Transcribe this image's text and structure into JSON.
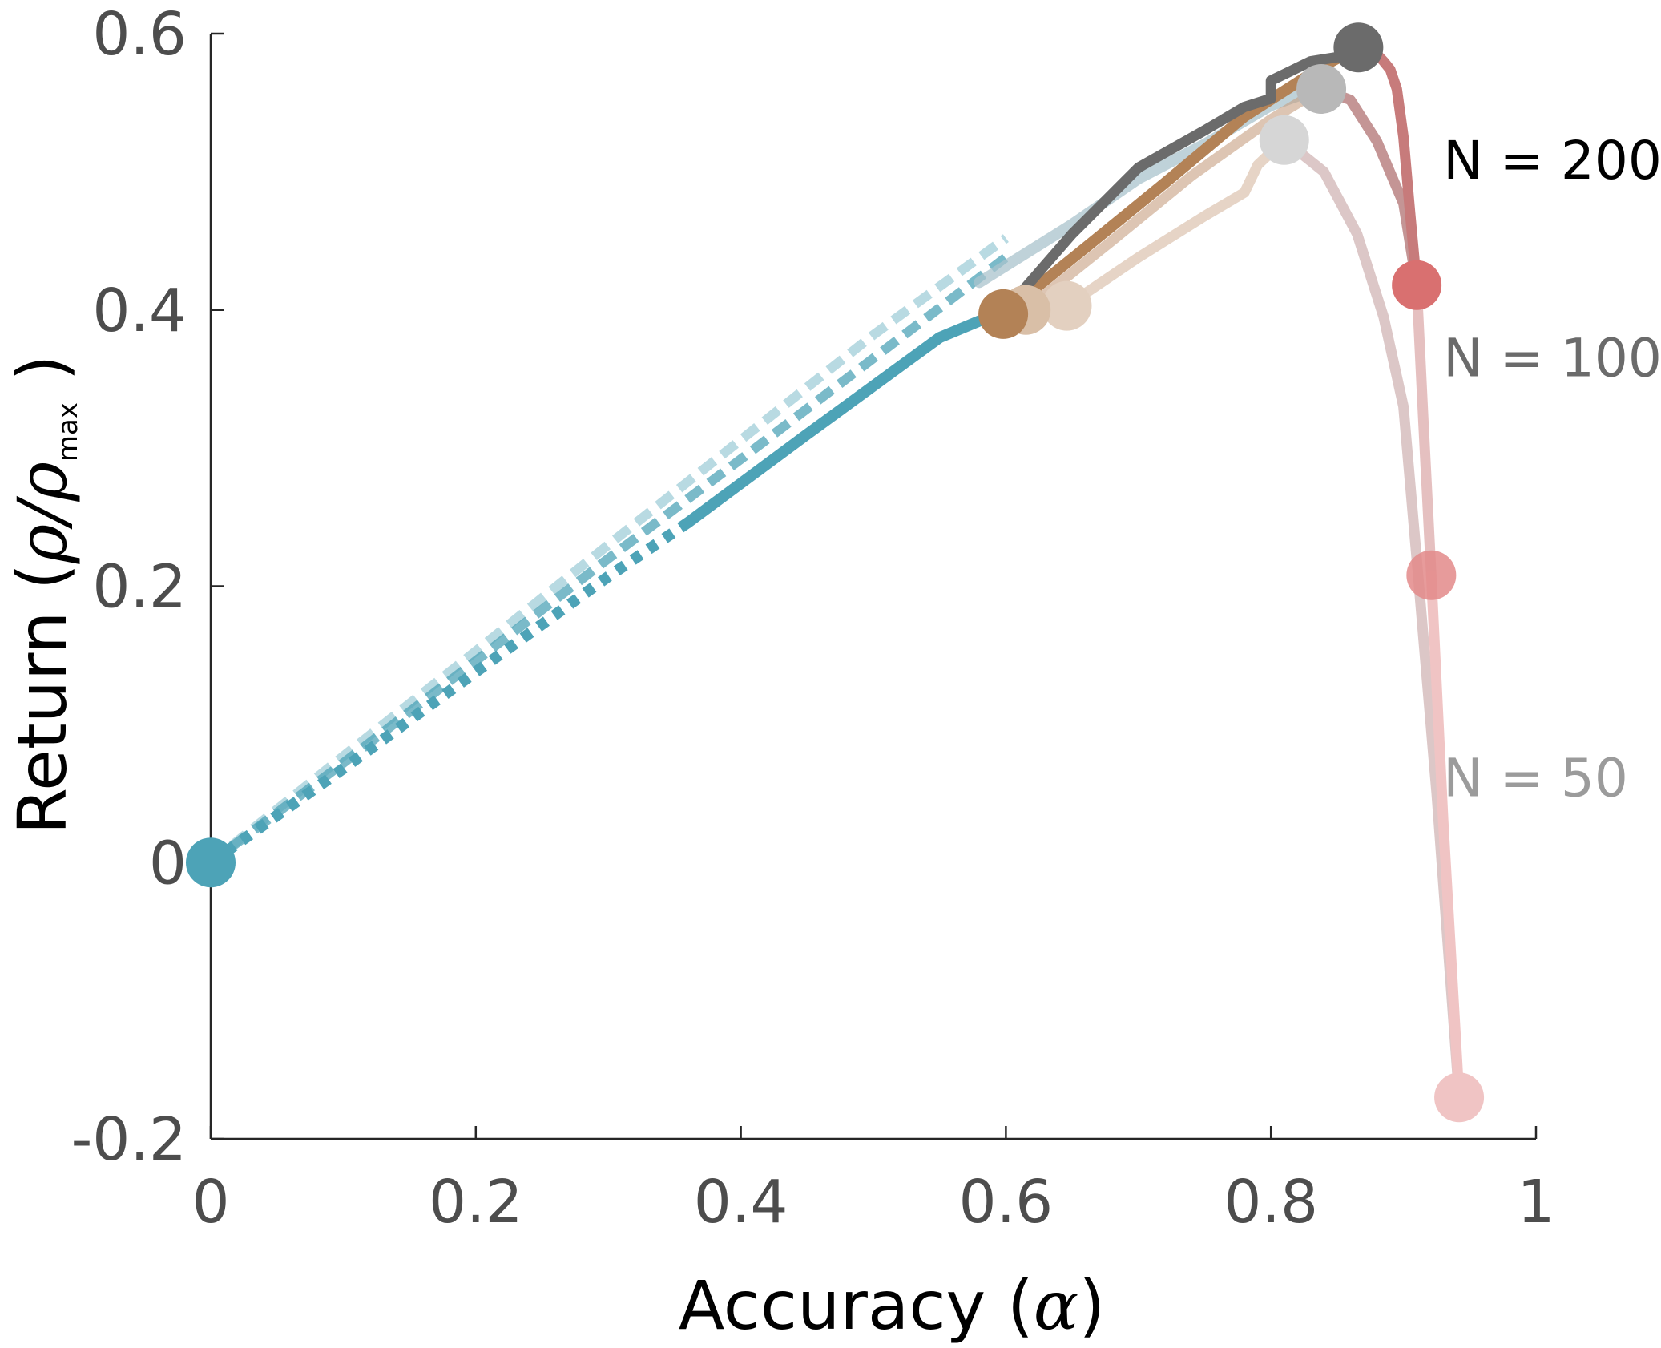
{
  "chart_data": {
    "type": "line",
    "xlabel": {
      "text": "Accuracy (",
      "symbol": "α",
      "close": ")"
    },
    "ylabel": {
      "text": "Return (",
      "symbol": "ρ/ρ",
      "subscript": "max",
      "close": " )"
    },
    "xlim": [
      0,
      1
    ],
    "ylim": [
      -0.2,
      0.6
    ],
    "xticks": [
      "0",
      "0.2",
      "0.4",
      "0.6",
      "0.8",
      "1"
    ],
    "yticks": [
      "-0.2",
      "0",
      "0.2",
      "0.4",
      "0.6"
    ],
    "grid": false,
    "legend": "none",
    "annotations": [
      {
        "text": "N = 200",
        "color": "#000000",
        "x": 0.93,
        "y": 0.495
      },
      {
        "text": "N = 100",
        "color": "#6b6b6b",
        "x": 0.93,
        "y": 0.352
      },
      {
        "text": "N = 50",
        "color": "#9b9b9b",
        "x": 0.93,
        "y": 0.048
      }
    ],
    "series": [
      {
        "color": "#4da3b7",
        "opacity": 0.4,
        "style": "dashed",
        "width": 12,
        "x": [
          0,
          0.1,
          0.2,
          0.3,
          0.4,
          0.5,
          0.6
        ],
        "y": [
          0,
          0.077,
          0.153,
          0.23,
          0.306,
          0.382,
          0.452
        ]
      },
      {
        "color": "#4da3b7",
        "opacity": 0.75,
        "style": "dashed",
        "width": 12,
        "x": [
          0,
          0.1,
          0.2,
          0.3,
          0.4,
          0.5,
          0.6
        ],
        "y": [
          0,
          0.072,
          0.146,
          0.22,
          0.292,
          0.365,
          0.438
        ]
      },
      {
        "color": "#4da3b7",
        "opacity": 1,
        "style": "dotted",
        "width": 14,
        "x": [
          0,
          0.1,
          0.2,
          0.3,
          0.36
        ],
        "y": [
          0,
          0.068,
          0.138,
          0.207,
          0.246
        ]
      },
      {
        "color": "#4da3b7",
        "opacity": 1,
        "style": "solid",
        "width": 14,
        "x": [
          0.36,
          0.45,
          0.55,
          0.6
        ],
        "y": [
          0.246,
          0.31,
          0.38,
          0.4
        ]
      },
      {
        "color": "#a9c3cc",
        "opacity": 0.75,
        "style": "solid",
        "width": 14,
        "x": [
          0.58,
          0.65,
          0.7,
          0.75,
          0.8,
          0.85
        ],
        "y": [
          0.42,
          0.462,
          0.495,
          0.52,
          0.548,
          0.565
        ]
      },
      {
        "color": "#c79f80",
        "opacity": 0.45,
        "style": "solid",
        "width": 13,
        "x": [
          0.646,
          0.7,
          0.75,
          0.78,
          0.79,
          0.81
        ],
        "y": [
          0.403,
          0.438,
          0.468,
          0.485,
          0.505,
          0.523
        ]
      },
      {
        "color": "#c79f80",
        "opacity": 0.6,
        "style": "solid",
        "width": 13,
        "x": [
          0.615,
          0.68,
          0.74,
          0.8,
          0.838
        ],
        "y": [
          0.4,
          0.45,
          0.497,
          0.538,
          0.56
        ]
      },
      {
        "color": "#b38256",
        "opacity": 1,
        "style": "solid",
        "width": 14,
        "x": [
          0.598,
          0.66,
          0.72,
          0.78,
          0.84,
          0.866
        ],
        "y": [
          0.397,
          0.445,
          0.492,
          0.54,
          0.577,
          0.59
        ]
      },
      {
        "color": "#6b6b6b",
        "opacity": 1,
        "style": "solid",
        "width": 13,
        "x": [
          0.6,
          0.65,
          0.7,
          0.75,
          0.78,
          0.8,
          0.8,
          0.83,
          0.85,
          0.866
        ],
        "y": [
          0.4,
          0.455,
          0.503,
          0.53,
          0.547,
          0.553,
          0.566,
          0.58,
          0.583,
          0.59
        ]
      },
      {
        "color": "#dcc7c7",
        "opacity": 1,
        "style": "solid",
        "width": 13,
        "x": [
          0.81,
          0.84,
          0.865,
          0.885,
          0.9,
          0.91,
          0.925,
          0.942
        ],
        "y": [
          0.523,
          0.5,
          0.455,
          0.395,
          0.33,
          0.22,
          0.05,
          -0.17
        ]
      },
      {
        "color": "#c49595",
        "opacity": 1,
        "style": "solid",
        "width": 13,
        "x": [
          0.838,
          0.86,
          0.88,
          0.9,
          0.91
        ],
        "y": [
          0.56,
          0.552,
          0.522,
          0.477,
          0.418
        ]
      },
      {
        "color": "#cf8c8c",
        "opacity": 0.55,
        "style": "solid",
        "width": 13,
        "x": [
          0.91,
          0.915,
          0.921
        ],
        "y": [
          0.418,
          0.32,
          0.208
        ]
      },
      {
        "color": "#c77b7b",
        "opacity": 1,
        "style": "solid",
        "width": 13,
        "x": [
          0.866,
          0.875,
          0.88,
          0.885,
          0.89,
          0.895,
          0.9,
          0.905,
          0.91
        ],
        "y": [
          0.59,
          0.589,
          0.585,
          0.58,
          0.574,
          0.56,
          0.525,
          0.47,
          0.418
        ]
      },
      {
        "color": "#f0c4c4",
        "opacity": 1,
        "style": "solid",
        "width": 13,
        "x": [
          0.921,
          0.93,
          0.942
        ],
        "y": [
          0.208,
          0.03,
          -0.17
        ]
      }
    ],
    "markers": [
      {
        "x": 0,
        "y": 0,
        "color": "#4da3b7",
        "opacity": 1,
        "name": "start-marker"
      },
      {
        "x": 0.646,
        "y": 0.403,
        "color": "#e3d0c0",
        "opacity": 1,
        "name": "marker-n50-brown"
      },
      {
        "x": 0.615,
        "y": 0.4,
        "color": "#d9bfa7",
        "opacity": 1,
        "name": "marker-n100-brown"
      },
      {
        "x": 0.598,
        "y": 0.397,
        "color": "#b38256",
        "opacity": 1,
        "name": "marker-n200-brown"
      },
      {
        "x": 0.81,
        "y": 0.523,
        "color": "#d6d6d6",
        "opacity": 1,
        "name": "marker-n50-gray"
      },
      {
        "x": 0.838,
        "y": 0.56,
        "color": "#b8b8b8",
        "opacity": 1,
        "name": "marker-n100-gray"
      },
      {
        "x": 0.866,
        "y": 0.59,
        "color": "#6b6b6b",
        "opacity": 1,
        "name": "marker-n200-gray"
      },
      {
        "x": 0.91,
        "y": 0.418,
        "color": "#d97070",
        "opacity": 1,
        "name": "marker-n200-red"
      },
      {
        "x": 0.921,
        "y": 0.208,
        "color": "#e38a8a",
        "opacity": 0.85,
        "name": "marker-n100-red"
      },
      {
        "x": 0.942,
        "y": -0.17,
        "color": "#f0c4c4",
        "opacity": 1,
        "name": "marker-n50-red"
      }
    ]
  }
}
